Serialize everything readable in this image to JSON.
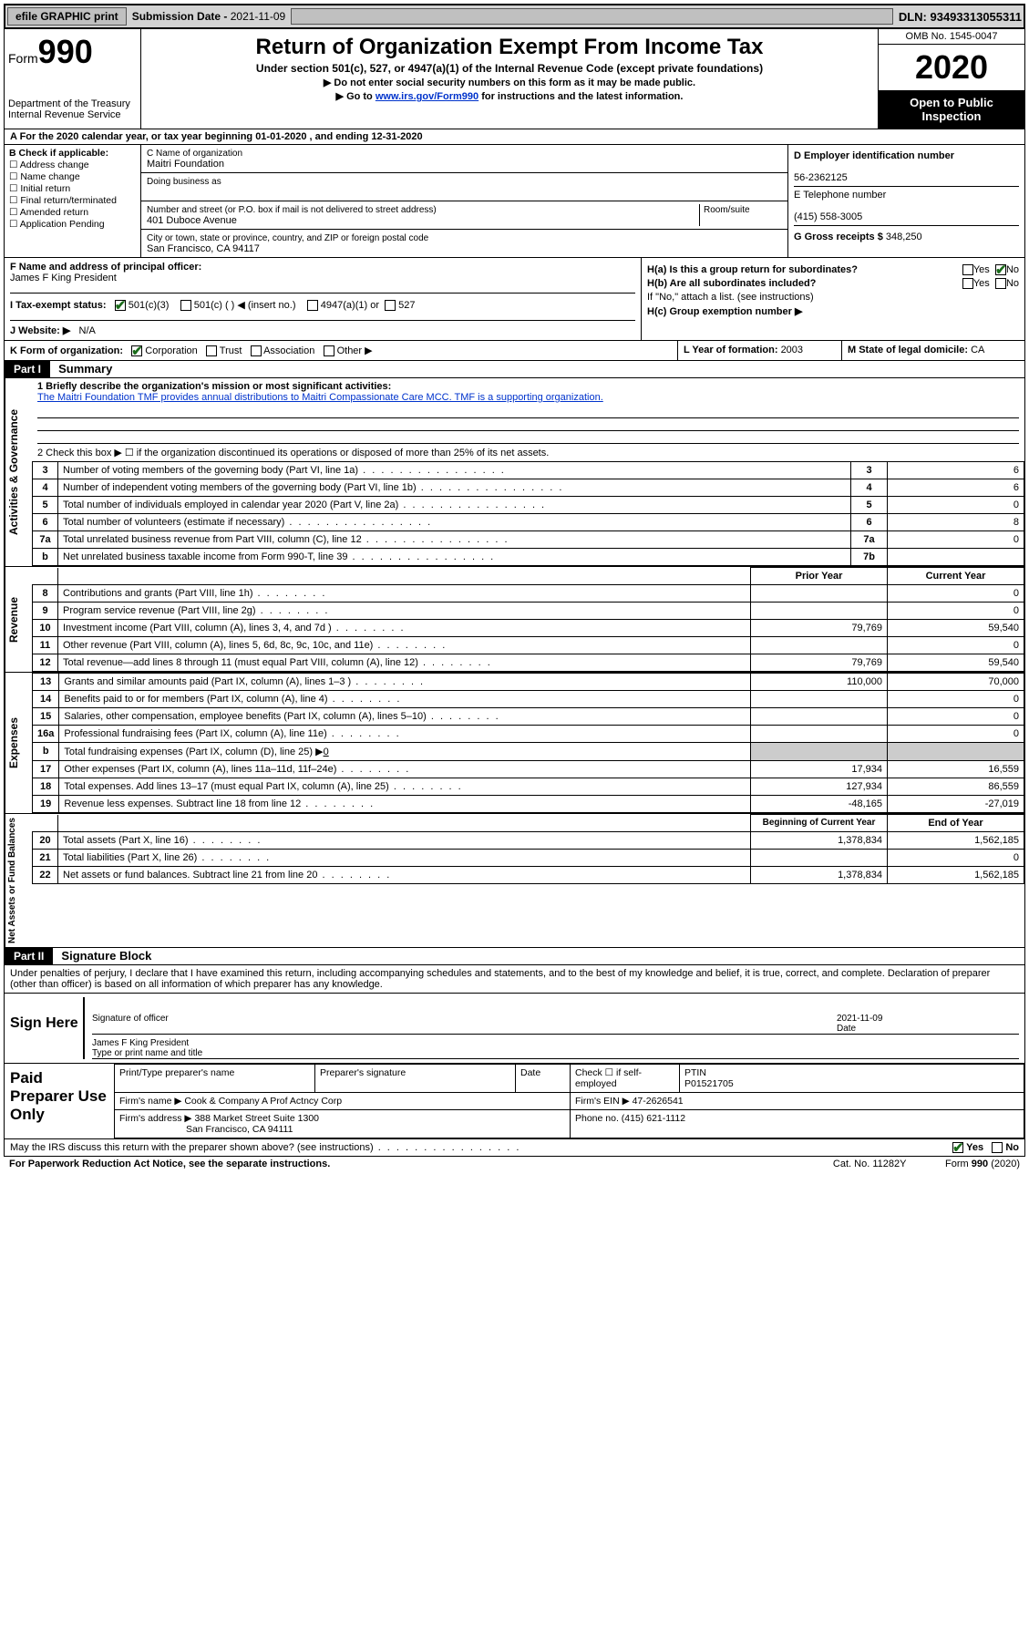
{
  "topbar": {
    "efile": "efile GRAPHIC print",
    "subdate_label": "Submission Date - ",
    "subdate": "2021-11-09",
    "dln": "DLN: 93493313055311"
  },
  "header": {
    "form_prefix": "Form",
    "form_num": "990",
    "dept": "Department of the Treasury\nInternal Revenue Service",
    "title": "Return of Organization Exempt From Income Tax",
    "subtitle": "Under section 501(c), 527, or 4947(a)(1) of the Internal Revenue Code (except private foundations)",
    "instr1": "▶ Do not enter social security numbers on this form as it may be made public.",
    "instr2_a": "▶ Go to ",
    "instr2_link": "www.irs.gov/Form990",
    "instr2_b": " for instructions and the latest information.",
    "omb": "OMB No. 1545-0047",
    "year": "2020",
    "open": "Open to Public Inspection"
  },
  "rowA": "A   For the 2020 calendar year, or tax year beginning 01-01-2020    , and ending 12-31-2020",
  "boxB": {
    "title": "B Check if applicable:",
    "opts": [
      "Address change",
      "Name change",
      "Initial return",
      "Final return/terminated",
      "Amended return",
      "Application Pending"
    ]
  },
  "boxC": {
    "name_lbl": "C Name of organization",
    "name": "Maitri Foundation",
    "dba_lbl": "Doing business as",
    "dba": "",
    "street_lbl": "Number and street (or P.O. box if mail is not delivered to street address)",
    "room_lbl": "Room/suite",
    "street": "401 Duboce Avenue",
    "city_lbl": "City or town, state or province, country, and ZIP or foreign postal code",
    "city": "San Francisco, CA  94117"
  },
  "boxD": {
    "ein_lbl": "D Employer identification number",
    "ein": "56-2362125",
    "tel_lbl": "E Telephone number",
    "tel": "(415) 558-3005",
    "gross_lbl": "G Gross receipts $ ",
    "gross": "348,250"
  },
  "boxF": {
    "lbl": "F  Name and address of principal officer:",
    "val": "James F King President"
  },
  "boxH": {
    "ha": "H(a)  Is this a group return for subordinates?",
    "hb": "H(b)  Are all subordinates included?",
    "hb_note": "If \"No,\" attach a list. (see instructions)",
    "hc": "H(c)  Group exemption number ▶",
    "yes": "Yes",
    "no": "No"
  },
  "boxI": {
    "lbl": "I    Tax-exempt status:",
    "o1": "501(c)(3)",
    "o2": "501(c) (  ) ◀ (insert no.)",
    "o3": "4947(a)(1) or",
    "o4": "527"
  },
  "boxJ": {
    "lbl": "J    Website: ▶",
    "val": "N/A"
  },
  "boxK": {
    "lbl": "K Form of organization:",
    "o1": "Corporation",
    "o2": "Trust",
    "o3": "Association",
    "o4": "Other ▶"
  },
  "boxL": {
    "lbl": "L Year of formation: ",
    "val": "2003"
  },
  "boxM": {
    "lbl": "M State of legal domicile: ",
    "val": "CA"
  },
  "part1": {
    "hdr": "Part I",
    "title": "Summary",
    "q1_lbl": "1  Briefly describe the organization's mission or most significant activities:",
    "q1_val": "The Maitri Foundation TMF provides annual distributions to Maitri Compassionate Care MCC. TMF is a supporting organization.",
    "q2": "2   Check this box ▶ ☐  if the organization discontinued its operations or disposed of more than 25% of its net assets.",
    "vtab1": "Activities & Governance",
    "vtab2": "Revenue",
    "vtab3": "Expenses",
    "vtab4": "Net Assets or Fund Balances",
    "rows_gov": [
      {
        "n": "3",
        "d": "Number of voting members of the governing body (Part VI, line 1a)",
        "b": "3",
        "v": "6"
      },
      {
        "n": "4",
        "d": "Number of independent voting members of the governing body (Part VI, line 1b)",
        "b": "4",
        "v": "6"
      },
      {
        "n": "5",
        "d": "Total number of individuals employed in calendar year 2020 (Part V, line 2a)",
        "b": "5",
        "v": "0"
      },
      {
        "n": "6",
        "d": "Total number of volunteers (estimate if necessary)",
        "b": "6",
        "v": "8"
      },
      {
        "n": "7a",
        "d": "Total unrelated business revenue from Part VIII, column (C), line 12",
        "b": "7a",
        "v": "0"
      },
      {
        "n": "b",
        "d": "Net unrelated business taxable income from Form 990-T, line 39",
        "b": "7b",
        "v": ""
      }
    ],
    "col_prior": "Prior Year",
    "col_curr": "Current Year",
    "rows_rev": [
      {
        "n": "8",
        "d": "Contributions and grants (Part VIII, line 1h)",
        "p": "",
        "c": "0"
      },
      {
        "n": "9",
        "d": "Program service revenue (Part VIII, line 2g)",
        "p": "",
        "c": "0"
      },
      {
        "n": "10",
        "d": "Investment income (Part VIII, column (A), lines 3, 4, and 7d )",
        "p": "79,769",
        "c": "59,540"
      },
      {
        "n": "11",
        "d": "Other revenue (Part VIII, column (A), lines 5, 6d, 8c, 9c, 10c, and 11e)",
        "p": "",
        "c": "0"
      },
      {
        "n": "12",
        "d": "Total revenue—add lines 8 through 11 (must equal Part VIII, column (A), line 12)",
        "p": "79,769",
        "c": "59,540"
      }
    ],
    "rows_exp": [
      {
        "n": "13",
        "d": "Grants and similar amounts paid (Part IX, column (A), lines 1–3 )",
        "p": "110,000",
        "c": "70,000"
      },
      {
        "n": "14",
        "d": "Benefits paid to or for members (Part IX, column (A), line 4)",
        "p": "",
        "c": "0"
      },
      {
        "n": "15",
        "d": "Salaries, other compensation, employee benefits (Part IX, column (A), lines 5–10)",
        "p": "",
        "c": "0"
      },
      {
        "n": "16a",
        "d": "Professional fundraising fees (Part IX, column (A), line 11e)",
        "p": "",
        "c": "0"
      }
    ],
    "row16b": {
      "n": "b",
      "d": "Total fundraising expenses (Part IX, column (D), line 25) ▶",
      "v": "0"
    },
    "rows_exp2": [
      {
        "n": "17",
        "d": "Other expenses (Part IX, column (A), lines 11a–11d, 11f–24e)",
        "p": "17,934",
        "c": "16,559"
      },
      {
        "n": "18",
        "d": "Total expenses. Add lines 13–17 (must equal Part IX, column (A), line 25)",
        "p": "127,934",
        "c": "86,559"
      },
      {
        "n": "19",
        "d": "Revenue less expenses. Subtract line 18 from line 12",
        "p": "-48,165",
        "c": "-27,019"
      }
    ],
    "col_beg": "Beginning of Current Year",
    "col_end": "End of Year",
    "rows_net": [
      {
        "n": "20",
        "d": "Total assets (Part X, line 16)",
        "p": "1,378,834",
        "c": "1,562,185"
      },
      {
        "n": "21",
        "d": "Total liabilities (Part X, line 26)",
        "p": "",
        "c": "0"
      },
      {
        "n": "22",
        "d": "Net assets or fund balances. Subtract line 21 from line 20",
        "p": "1,378,834",
        "c": "1,562,185"
      }
    ]
  },
  "part2": {
    "hdr": "Part II",
    "title": "Signature Block",
    "decl": "Under penalties of perjury, I declare that I have examined this return, including accompanying schedules and statements, and to the best of my knowledge and belief, it is true, correct, and complete. Declaration of preparer (other than officer) is based on all information of which preparer has any knowledge."
  },
  "sign": {
    "here": "Sign Here",
    "sig_lbl": "Signature of officer",
    "date_lbl": "Date",
    "date": "2021-11-09",
    "name": "James F King  President",
    "name_lbl": "Type or print name and title"
  },
  "prep": {
    "title": "Paid Preparer Use Only",
    "h1": "Print/Type preparer's name",
    "h2": "Preparer's signature",
    "h3": "Date",
    "h4a": "Check ☐ if self-employed",
    "h4b": "PTIN",
    "ptin": "P01521705",
    "firm_lbl": "Firm's name      ▶",
    "firm": "Cook & Company A Prof Actncy Corp",
    "ein_lbl": "Firm's EIN ▶",
    "ein": "47-2626541",
    "addr_lbl": "Firm's address ▶",
    "addr1": "388 Market Street Suite 1300",
    "addr2": "San Francisco, CA  94111",
    "phone_lbl": "Phone no. ",
    "phone": "(415) 621-1112"
  },
  "footer": {
    "q": "May the IRS discuss this return with the preparer shown above? (see instructions)",
    "yes": "Yes",
    "no": "No",
    "pra": "For Paperwork Reduction Act Notice, see the separate instructions.",
    "cat": "Cat. No. 11282Y",
    "form": "Form 990 (2020)"
  }
}
